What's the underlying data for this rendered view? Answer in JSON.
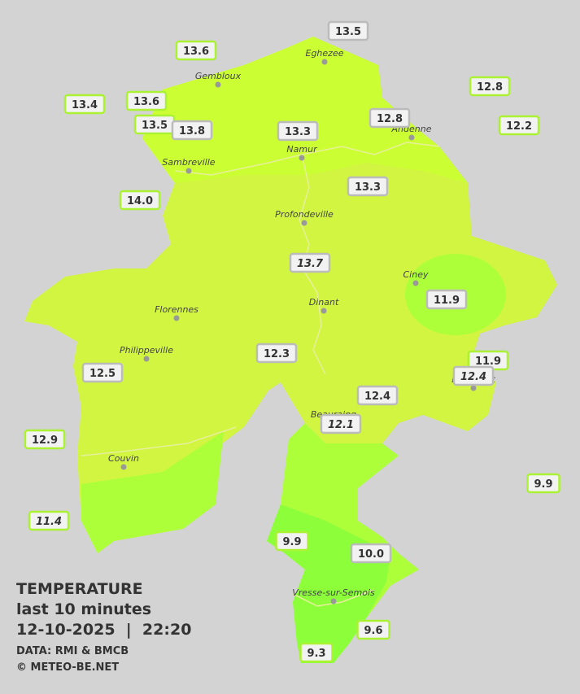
{
  "legend": {
    "title": "TEMPERATURE",
    "subtitle": "last 10 minutes",
    "datetime": "12-10-2025  |  22:20",
    "source": "DATA: RMI & BMCB",
    "credit": "© METEO-BE.NET"
  },
  "cities": [
    "Eghezee",
    "Gembloux",
    "Andenne",
    "Namur",
    "Sambreville",
    "Profondeville",
    "Ciney",
    "Dinant",
    "Florennes",
    "Philippeville",
    "Rochefort",
    "Beauraing",
    "Couvin",
    "Vresse-sur-Semois"
  ],
  "stations": [
    {
      "value": "13.5",
      "outside": false,
      "italic": false
    },
    {
      "value": "13.6",
      "outside": true,
      "italic": false
    },
    {
      "value": "12.8",
      "outside": true,
      "italic": false
    },
    {
      "value": "13.4",
      "outside": true,
      "italic": false
    },
    {
      "value": "13.6",
      "outside": true,
      "italic": false
    },
    {
      "value": "13.5",
      "outside": true,
      "italic": false
    },
    {
      "value": "13.8",
      "outside": false,
      "italic": false
    },
    {
      "value": "13.3",
      "outside": false,
      "italic": false
    },
    {
      "value": "12.8",
      "outside": false,
      "italic": false
    },
    {
      "value": "12.2",
      "outside": true,
      "italic": false
    },
    {
      "value": "14.0",
      "outside": true,
      "italic": false
    },
    {
      "value": "13.3",
      "outside": false,
      "italic": false
    },
    {
      "value": "13.7",
      "outside": false,
      "italic": true
    },
    {
      "value": "11.9",
      "outside": false,
      "italic": false
    },
    {
      "value": "12.3",
      "outside": false,
      "italic": false
    },
    {
      "value": "11.9",
      "outside": true,
      "italic": false
    },
    {
      "value": "12.4",
      "outside": false,
      "italic": true
    },
    {
      "value": "12.5",
      "outside": false,
      "italic": false
    },
    {
      "value": "12.4",
      "outside": false,
      "italic": false
    },
    {
      "value": "12.1",
      "outside": false,
      "italic": true
    },
    {
      "value": "12.9",
      "outside": true,
      "italic": false
    },
    {
      "value": "9.9",
      "outside": true,
      "italic": false
    },
    {
      "value": "11.4",
      "outside": true,
      "italic": true
    },
    {
      "value": "9.9",
      "outside": true,
      "italic": false
    },
    {
      "value": "10.0",
      "outside": false,
      "italic": false
    },
    {
      "value": "9.6",
      "outside": true,
      "italic": false
    },
    {
      "value": "9.3",
      "outside": true,
      "italic": false
    }
  ]
}
